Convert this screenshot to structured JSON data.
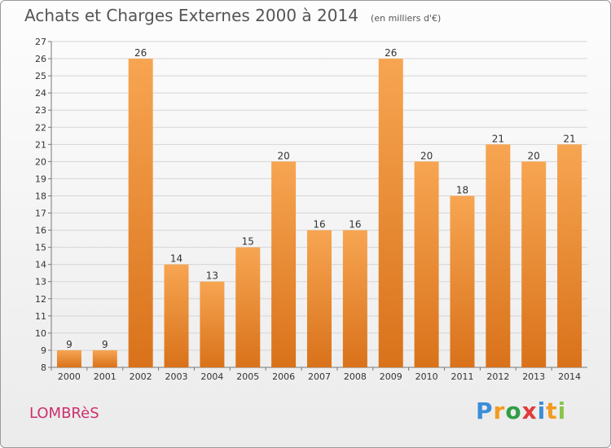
{
  "title": "Achats et Charges Externes 2000 à 2014",
  "subtitle": "(en milliers d'€)",
  "town": "LOMBRèS",
  "logo": {
    "letters": [
      {
        "ch": "P",
        "color": "#3b8ed8"
      },
      {
        "ch": "r",
        "color": "#f39a1f"
      },
      {
        "ch": "o",
        "color": "#2f9e44"
      },
      {
        "ch": "x",
        "color": "#e13b3b"
      },
      {
        "ch": "i",
        "color": "#3b8ed8"
      },
      {
        "ch": "t",
        "color": "#f39a1f"
      },
      {
        "ch": "i",
        "color": "#8bc34a"
      }
    ]
  },
  "colors": {
    "bar_top": "#f7a552",
    "bar_bottom": "#d9721a",
    "grid": "#d5d5d5",
    "axis": "#777777",
    "text": "#333333"
  },
  "chart_data": {
    "type": "bar",
    "categories": [
      "2000",
      "2001",
      "2002",
      "2003",
      "2004",
      "2005",
      "2006",
      "2007",
      "2008",
      "2009",
      "2010",
      "2011",
      "2012",
      "2013",
      "2014"
    ],
    "values": [
      9,
      9,
      26,
      14,
      13,
      15,
      20,
      16,
      16,
      26,
      20,
      18,
      21,
      20,
      21
    ],
    "title": "Achats et Charges Externes 2000 à 2014",
    "subtitle": "(en milliers d'€)",
    "ylim": [
      8,
      27
    ],
    "yticks": [
      8,
      9,
      10,
      11,
      12,
      13,
      14,
      15,
      16,
      17,
      18,
      19,
      20,
      21,
      22,
      23,
      24,
      25,
      26,
      27
    ],
    "grid": true,
    "data_labels": true
  }
}
